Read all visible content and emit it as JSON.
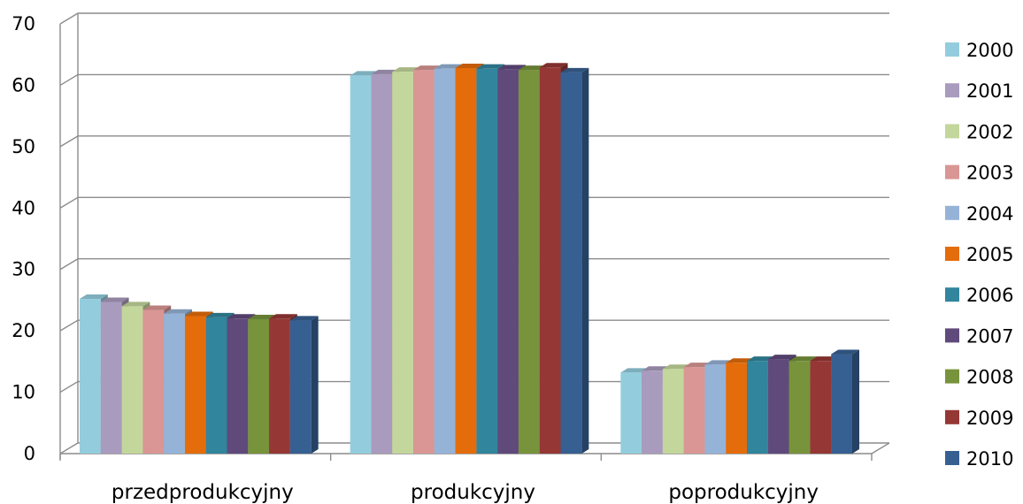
{
  "chart_data": {
    "type": "bar",
    "title": "",
    "xlabel": "",
    "ylabel": "",
    "ylim": [
      0,
      70
    ],
    "yticks": [
      0,
      10,
      20,
      30,
      40,
      50,
      60,
      70
    ],
    "grid": true,
    "three_d": true,
    "legend_position": "right",
    "categories": [
      "przedprodukcyjny",
      "produkcyjny",
      "poprodukcyjny"
    ],
    "series": [
      {
        "name": "2000",
        "color": "#93CDDD",
        "values": [
          25.2,
          61.6,
          13.2
        ]
      },
      {
        "name": "2001",
        "color": "#A99BBD",
        "values": [
          24.7,
          61.8,
          13.5
        ]
      },
      {
        "name": "2002",
        "color": "#C3D69B",
        "values": [
          24.0,
          62.2,
          13.8
        ]
      },
      {
        "name": "2003",
        "color": "#D99694",
        "values": [
          23.4,
          62.5,
          14.1
        ]
      },
      {
        "name": "2004",
        "color": "#95B3D7",
        "values": [
          22.8,
          62.7,
          14.5
        ]
      },
      {
        "name": "2005",
        "color": "#E46C0A",
        "values": [
          22.4,
          62.8,
          14.8
        ]
      },
      {
        "name": "2006",
        "color": "#31859C",
        "values": [
          22.2,
          62.7,
          15.1
        ]
      },
      {
        "name": "2007",
        "color": "#604A7B",
        "values": [
          22.0,
          62.6,
          15.4
        ]
      },
      {
        "name": "2008",
        "color": "#77933C",
        "values": [
          21.9,
          62.5,
          15.1
        ]
      },
      {
        "name": "2009",
        "color": "#953735",
        "values": [
          22.0,
          62.9,
          15.1
        ]
      },
      {
        "name": "2010",
        "color": "#376092",
        "values": [
          21.7,
          62.1,
          16.2
        ]
      }
    ]
  }
}
